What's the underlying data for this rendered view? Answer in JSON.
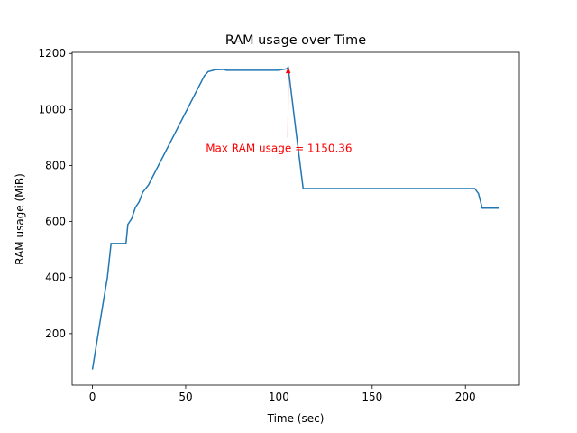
{
  "chart_data": {
    "type": "line",
    "title": "RAM usage over Time",
    "x_label": "Time (sec)",
    "y_label": "RAM usage (MiB)",
    "x": [
      0,
      5,
      8,
      10,
      18,
      19,
      21,
      23,
      25,
      27,
      30,
      60,
      62,
      66,
      70,
      72,
      100,
      102,
      104,
      105,
      109,
      113,
      205,
      207,
      209,
      218
    ],
    "series": [
      {
        "name": "RAM usage",
        "color": "#1f77b4",
        "values": [
          72,
          280,
          400,
          522,
          522,
          590,
          610,
          650,
          670,
          705,
          730,
          1120,
          1135,
          1142,
          1143,
          1140,
          1140,
          1143,
          1145,
          1150.36,
          930,
          718,
          718,
          700,
          648,
          648
        ]
      }
    ],
    "xlim": [
      -10.9,
      228.9
    ],
    "ylim": [
      16,
      1204
    ],
    "xticks": [
      0,
      50,
      100,
      150,
      200
    ],
    "yticks": [
      200,
      400,
      600,
      800,
      1000,
      1200
    ],
    "grid": false,
    "annotation": {
      "text": "Max RAM usage = 1150.36",
      "color": "red",
      "xy": [
        105,
        1150.36
      ],
      "xytext": [
        100,
        900
      ]
    }
  }
}
